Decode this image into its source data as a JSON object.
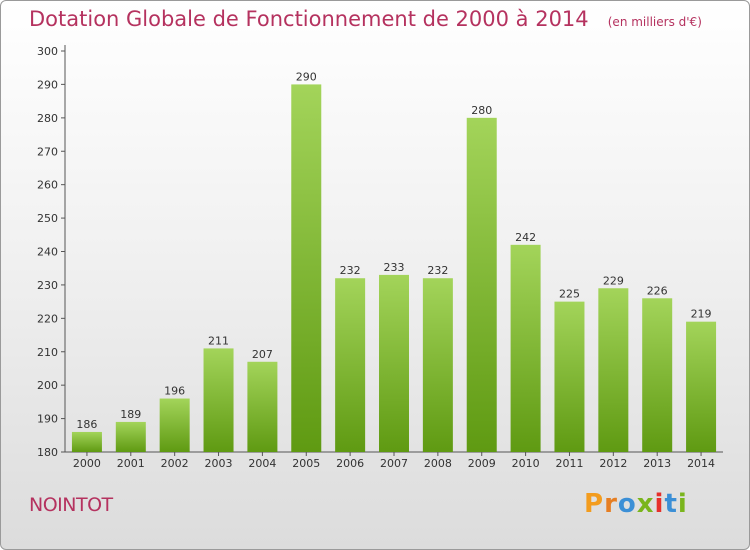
{
  "chart_data": {
    "type": "bar",
    "title": "Dotation Globale de Fonctionnement de 2000 à 2014",
    "subtitle": "(en milliers d'€)",
    "categories": [
      "2000",
      "2001",
      "2002",
      "2003",
      "2004",
      "2005",
      "2006",
      "2007",
      "2008",
      "2009",
      "2010",
      "2011",
      "2012",
      "2013",
      "2014"
    ],
    "values": [
      186,
      189,
      196,
      211,
      207,
      290,
      232,
      233,
      232,
      280,
      242,
      225,
      229,
      226,
      219
    ],
    "ylim": [
      180,
      300
    ],
    "yticks": [
      180,
      190,
      200,
      210,
      220,
      230,
      240,
      250,
      260,
      270,
      280,
      290,
      300
    ],
    "grid": false,
    "colors": {
      "bar_top": "#a3d45a",
      "bar_bottom": "#5f9a12",
      "title": "#b5325f",
      "axis": "#555555"
    }
  },
  "commune": "NOINTOT",
  "logo": {
    "text": "Proxiti",
    "letter_colors": [
      "#f39c1e",
      "#e67e22",
      "#3b8fd6",
      "#7ab51d",
      "#e6302b",
      "#3b8fd6",
      "#7ab51d"
    ]
  }
}
